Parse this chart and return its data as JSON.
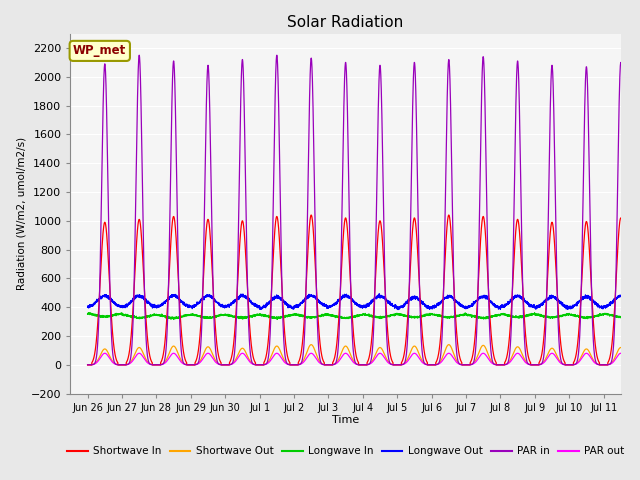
{
  "title": "Solar Radiation",
  "xlabel": "Time",
  "ylabel": "Radiation (W/m2, umol/m2/s)",
  "ylim": [
    -200,
    2300
  ],
  "yticks": [
    -200,
    0,
    200,
    400,
    600,
    800,
    1000,
    1200,
    1400,
    1600,
    1800,
    2000,
    2200
  ],
  "xtick_labels": [
    "Jun 26",
    "Jun 27",
    "Jun 28",
    "Jun 29",
    "Jun 30",
    "Jul 1",
    "Jul 2",
    "Jul 3",
    "Jul 4",
    "Jul 5",
    "Jul 6",
    "Jul 7",
    "Jul 8",
    "Jul 9",
    "Jul 10",
    "Jul 11"
  ],
  "colors": {
    "shortwave_in": "#FF0000",
    "shortwave_out": "#FFA500",
    "longwave_in": "#00CC00",
    "longwave_out": "#0000FF",
    "par_in": "#9900BB",
    "par_out": "#FF00FF"
  },
  "legend_labels": [
    "Shortwave In",
    "Shortwave Out",
    "Longwave In",
    "Longwave Out",
    "PAR in",
    "PAR out"
  ],
  "annotation_text": "WP_met",
  "background_color": "#E8E8E8",
  "plot_bg_color": "#F5F5F5",
  "grid_color": "#FFFFFF",
  "title_fontsize": 11
}
